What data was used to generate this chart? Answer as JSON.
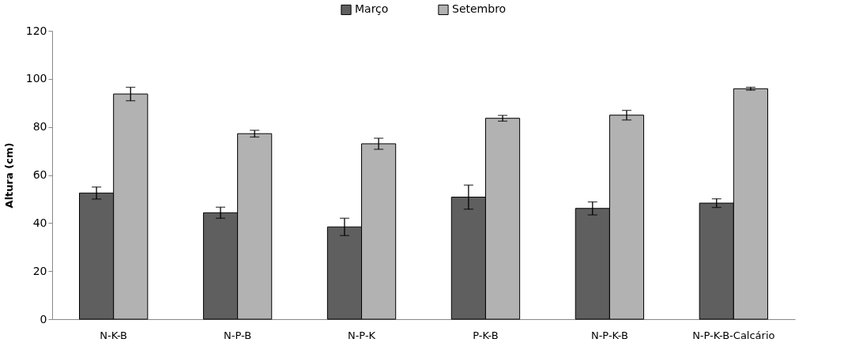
{
  "chart_data": {
    "type": "bar",
    "ylabel": "Altura (cm)",
    "categories": [
      "N-K-B",
      "N-P-B",
      "N-P-K",
      "P-K-B",
      "N-P-K-B",
      "N-P-K-B-Calcário"
    ],
    "series": [
      {
        "name": "Março",
        "color": "#5f5f5f",
        "values": [
          52.5,
          44.3,
          38.4,
          50.8,
          46.1,
          48.3
        ],
        "errors": [
          2.5,
          2.3,
          3.6,
          5,
          2.7,
          1.8
        ]
      },
      {
        "name": "Setembro",
        "color": "#b2b2b2",
        "values": [
          93.7,
          77.2,
          73.0,
          83.6,
          84.9,
          95.9
        ],
        "errors": [
          2.8,
          1.4,
          2.3,
          1.2,
          2,
          0.6
        ]
      }
    ],
    "ylim": [
      0,
      120
    ],
    "yticks": [
      0,
      20,
      40,
      60,
      80,
      100,
      120
    ],
    "grid": false,
    "legend": "top"
  }
}
